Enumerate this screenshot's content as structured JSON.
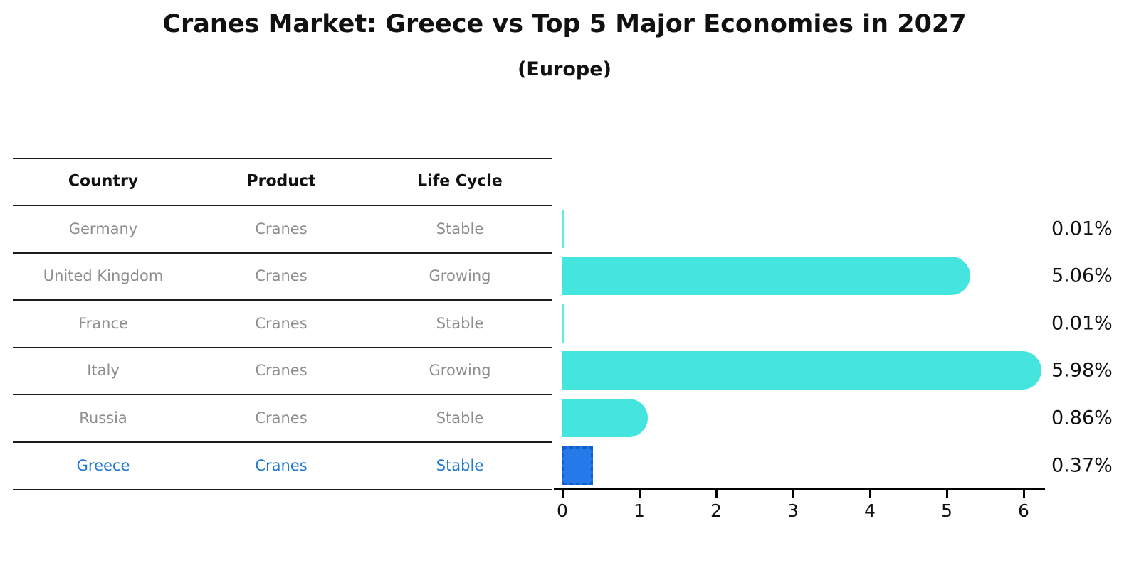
{
  "title": "Cranes Market: Greece vs Top 5 Major Economies in 2027",
  "subtitle": "(Europe)",
  "table": {
    "headers": [
      "Country",
      "Product",
      "Life Cycle"
    ],
    "rows": [
      {
        "country": "Germany",
        "product": "Cranes",
        "life_cycle": "Stable",
        "highlight": false
      },
      {
        "country": "United Kingdom",
        "product": "Cranes",
        "life_cycle": "Growing",
        "highlight": false
      },
      {
        "country": "France",
        "product": "Cranes",
        "life_cycle": "Stable",
        "highlight": false
      },
      {
        "country": "Italy",
        "product": "Cranes",
        "life_cycle": "Growing",
        "highlight": false
      },
      {
        "country": "Russia",
        "product": "Cranes",
        "life_cycle": "Stable",
        "highlight": false
      },
      {
        "country": "Greece",
        "product": "Cranes",
        "life_cycle": "Stable",
        "highlight": true
      }
    ]
  },
  "chart_data": {
    "type": "bar",
    "orientation": "horizontal",
    "title": "Cranes Market: Greece vs Top 5 Major Economies in 2027 (Europe)",
    "categories": [
      "Germany",
      "United Kingdom",
      "France",
      "Italy",
      "Russia",
      "Greece"
    ],
    "values": [
      0.01,
      5.06,
      0.01,
      5.98,
      0.86,
      0.37
    ],
    "value_labels": [
      "0.01%",
      "5.06%",
      "0.01%",
      "5.98%",
      "0.86%",
      "0.37%"
    ],
    "x_tick_labels": [
      "0",
      "1",
      "2",
      "3",
      "4",
      "5",
      "6"
    ],
    "xlim": [
      0,
      6.3
    ],
    "grid": false,
    "legend": "none",
    "bar_color": "#45E5DF",
    "highlight_bar_color": "#2679e8",
    "highlight_index": 5
  },
  "colors": {
    "text_gray": "#8e8e8e",
    "highlight_text": "#1f78d1",
    "highlight_border": "#1060c8",
    "rule_line": "#1c1c1c",
    "axis": "#000000"
  }
}
